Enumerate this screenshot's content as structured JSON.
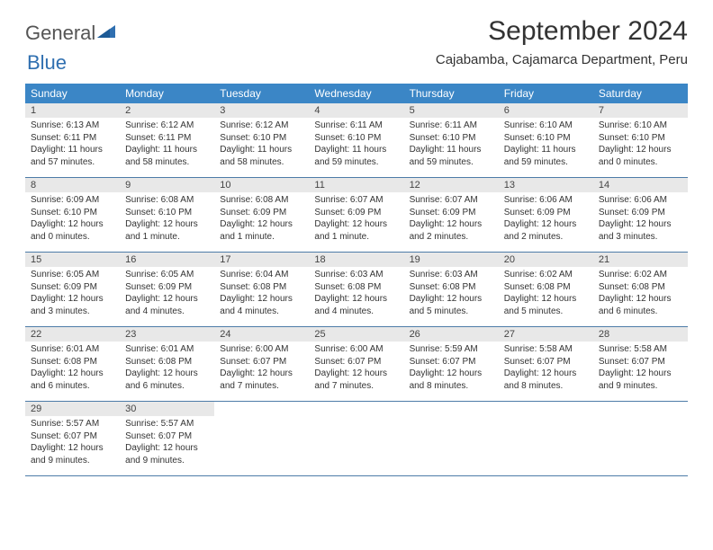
{
  "logo": {
    "text1": "General",
    "text2": "Blue"
  },
  "title": "September 2024",
  "location": "Cajabamba, Cajamarca Department, Peru",
  "colors": {
    "header_bg": "#3b86c6",
    "header_text": "#ffffff",
    "daynum_bg": "#e8e8e8",
    "border": "#4d7ca8",
    "logo_gray": "#555555",
    "logo_blue": "#2f6fb0",
    "text": "#333333"
  },
  "typography": {
    "title_fontsize": 30,
    "location_fontsize": 15,
    "dayheader_fontsize": 12,
    "cell_fontsize": 10
  },
  "day_headers": [
    "Sunday",
    "Monday",
    "Tuesday",
    "Wednesday",
    "Thursday",
    "Friday",
    "Saturday"
  ],
  "weeks": [
    [
      {
        "n": "1",
        "sr": "Sunrise: 6:13 AM",
        "ss": "Sunset: 6:11 PM",
        "dl": "Daylight: 11 hours and 57 minutes."
      },
      {
        "n": "2",
        "sr": "Sunrise: 6:12 AM",
        "ss": "Sunset: 6:11 PM",
        "dl": "Daylight: 11 hours and 58 minutes."
      },
      {
        "n": "3",
        "sr": "Sunrise: 6:12 AM",
        "ss": "Sunset: 6:10 PM",
        "dl": "Daylight: 11 hours and 58 minutes."
      },
      {
        "n": "4",
        "sr": "Sunrise: 6:11 AM",
        "ss": "Sunset: 6:10 PM",
        "dl": "Daylight: 11 hours and 59 minutes."
      },
      {
        "n": "5",
        "sr": "Sunrise: 6:11 AM",
        "ss": "Sunset: 6:10 PM",
        "dl": "Daylight: 11 hours and 59 minutes."
      },
      {
        "n": "6",
        "sr": "Sunrise: 6:10 AM",
        "ss": "Sunset: 6:10 PM",
        "dl": "Daylight: 11 hours and 59 minutes."
      },
      {
        "n": "7",
        "sr": "Sunrise: 6:10 AM",
        "ss": "Sunset: 6:10 PM",
        "dl": "Daylight: 12 hours and 0 minutes."
      }
    ],
    [
      {
        "n": "8",
        "sr": "Sunrise: 6:09 AM",
        "ss": "Sunset: 6:10 PM",
        "dl": "Daylight: 12 hours and 0 minutes."
      },
      {
        "n": "9",
        "sr": "Sunrise: 6:08 AM",
        "ss": "Sunset: 6:10 PM",
        "dl": "Daylight: 12 hours and 1 minute."
      },
      {
        "n": "10",
        "sr": "Sunrise: 6:08 AM",
        "ss": "Sunset: 6:09 PM",
        "dl": "Daylight: 12 hours and 1 minute."
      },
      {
        "n": "11",
        "sr": "Sunrise: 6:07 AM",
        "ss": "Sunset: 6:09 PM",
        "dl": "Daylight: 12 hours and 1 minute."
      },
      {
        "n": "12",
        "sr": "Sunrise: 6:07 AM",
        "ss": "Sunset: 6:09 PM",
        "dl": "Daylight: 12 hours and 2 minutes."
      },
      {
        "n": "13",
        "sr": "Sunrise: 6:06 AM",
        "ss": "Sunset: 6:09 PM",
        "dl": "Daylight: 12 hours and 2 minutes."
      },
      {
        "n": "14",
        "sr": "Sunrise: 6:06 AM",
        "ss": "Sunset: 6:09 PM",
        "dl": "Daylight: 12 hours and 3 minutes."
      }
    ],
    [
      {
        "n": "15",
        "sr": "Sunrise: 6:05 AM",
        "ss": "Sunset: 6:09 PM",
        "dl": "Daylight: 12 hours and 3 minutes."
      },
      {
        "n": "16",
        "sr": "Sunrise: 6:05 AM",
        "ss": "Sunset: 6:09 PM",
        "dl": "Daylight: 12 hours and 4 minutes."
      },
      {
        "n": "17",
        "sr": "Sunrise: 6:04 AM",
        "ss": "Sunset: 6:08 PM",
        "dl": "Daylight: 12 hours and 4 minutes."
      },
      {
        "n": "18",
        "sr": "Sunrise: 6:03 AM",
        "ss": "Sunset: 6:08 PM",
        "dl": "Daylight: 12 hours and 4 minutes."
      },
      {
        "n": "19",
        "sr": "Sunrise: 6:03 AM",
        "ss": "Sunset: 6:08 PM",
        "dl": "Daylight: 12 hours and 5 minutes."
      },
      {
        "n": "20",
        "sr": "Sunrise: 6:02 AM",
        "ss": "Sunset: 6:08 PM",
        "dl": "Daylight: 12 hours and 5 minutes."
      },
      {
        "n": "21",
        "sr": "Sunrise: 6:02 AM",
        "ss": "Sunset: 6:08 PM",
        "dl": "Daylight: 12 hours and 6 minutes."
      }
    ],
    [
      {
        "n": "22",
        "sr": "Sunrise: 6:01 AM",
        "ss": "Sunset: 6:08 PM",
        "dl": "Daylight: 12 hours and 6 minutes."
      },
      {
        "n": "23",
        "sr": "Sunrise: 6:01 AM",
        "ss": "Sunset: 6:08 PM",
        "dl": "Daylight: 12 hours and 6 minutes."
      },
      {
        "n": "24",
        "sr": "Sunrise: 6:00 AM",
        "ss": "Sunset: 6:07 PM",
        "dl": "Daylight: 12 hours and 7 minutes."
      },
      {
        "n": "25",
        "sr": "Sunrise: 6:00 AM",
        "ss": "Sunset: 6:07 PM",
        "dl": "Daylight: 12 hours and 7 minutes."
      },
      {
        "n": "26",
        "sr": "Sunrise: 5:59 AM",
        "ss": "Sunset: 6:07 PM",
        "dl": "Daylight: 12 hours and 8 minutes."
      },
      {
        "n": "27",
        "sr": "Sunrise: 5:58 AM",
        "ss": "Sunset: 6:07 PM",
        "dl": "Daylight: 12 hours and 8 minutes."
      },
      {
        "n": "28",
        "sr": "Sunrise: 5:58 AM",
        "ss": "Sunset: 6:07 PM",
        "dl": "Daylight: 12 hours and 9 minutes."
      }
    ],
    [
      {
        "n": "29",
        "sr": "Sunrise: 5:57 AM",
        "ss": "Sunset: 6:07 PM",
        "dl": "Daylight: 12 hours and 9 minutes."
      },
      {
        "n": "30",
        "sr": "Sunrise: 5:57 AM",
        "ss": "Sunset: 6:07 PM",
        "dl": "Daylight: 12 hours and 9 minutes."
      },
      null,
      null,
      null,
      null,
      null
    ]
  ]
}
